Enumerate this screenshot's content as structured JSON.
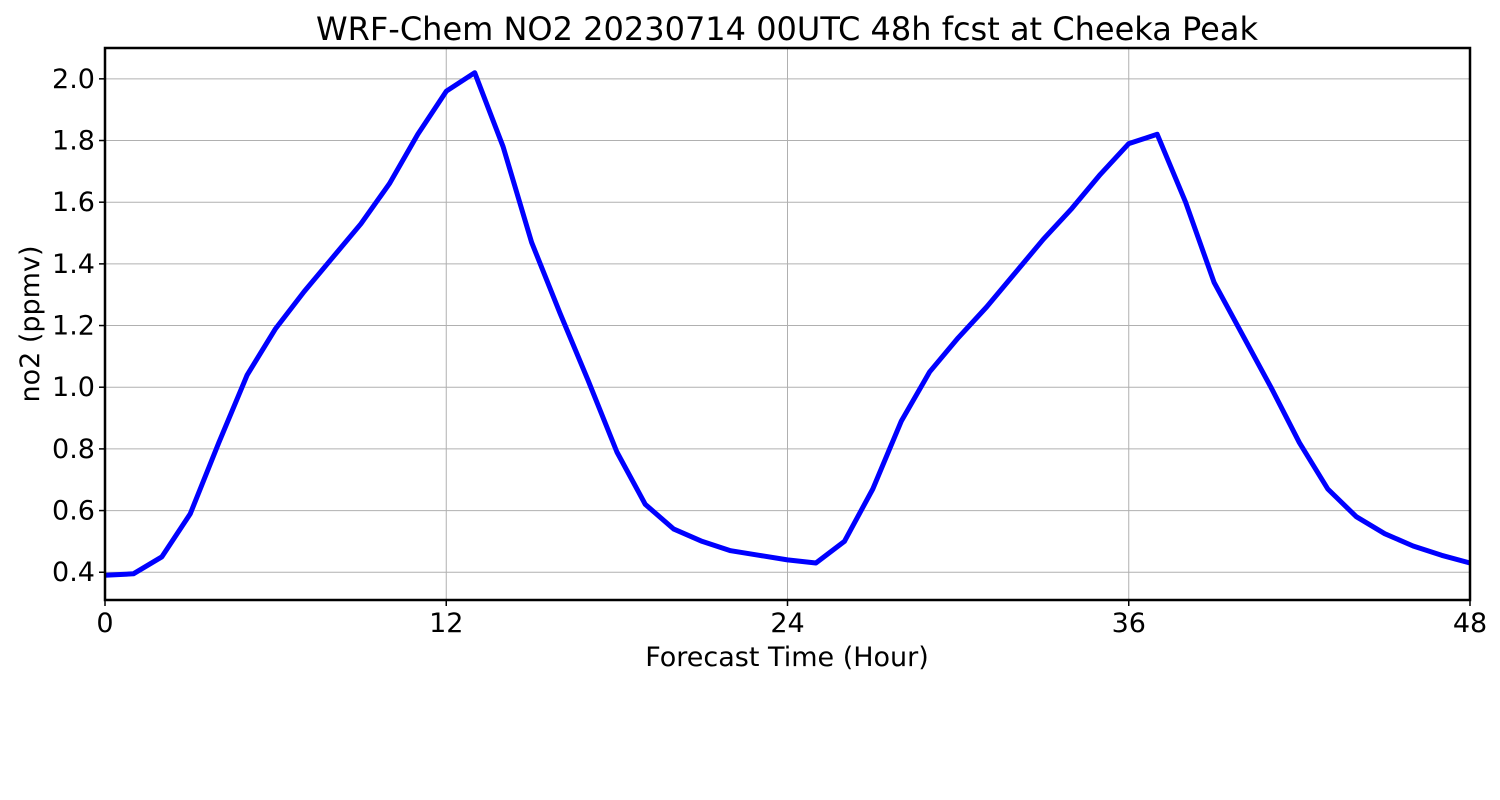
{
  "chart_data": {
    "type": "line",
    "title": "WRF-Chem NO2  20230714 00UTC 48h fcst at Cheeka Peak",
    "xlabel": "Forecast Time (Hour)",
    "ylabel": "no2  (ppmv)",
    "xlim": [
      0,
      48
    ],
    "ylim": [
      0.31,
      2.1
    ],
    "xticks": [
      0,
      12,
      24,
      36,
      48
    ],
    "yticks": [
      0.4,
      0.6,
      0.8,
      1.0,
      1.2,
      1.4,
      1.6,
      1.8,
      2.0
    ],
    "ytick_labels": [
      "0.4",
      "0.6",
      "0.8",
      "1.0",
      "1.2",
      "1.4",
      "1.6",
      "1.8",
      "2.0"
    ],
    "grid": true,
    "series": [
      {
        "color": "#0000ff",
        "x": [
          0,
          1,
          2,
          3,
          4,
          5,
          6,
          7,
          8,
          9,
          10,
          11,
          12,
          13,
          14,
          15,
          16,
          17,
          18,
          19,
          20,
          21,
          22,
          23,
          24,
          25,
          26,
          27,
          28,
          29,
          30,
          31,
          32,
          33,
          34,
          35,
          36,
          37,
          38,
          39,
          40,
          41,
          42,
          43,
          44,
          45,
          46,
          47,
          48
        ],
        "y": [
          0.39,
          0.395,
          0.45,
          0.59,
          0.82,
          1.04,
          1.19,
          1.31,
          1.42,
          1.53,
          1.66,
          1.82,
          1.96,
          2.02,
          1.78,
          1.47,
          1.24,
          1.02,
          0.79,
          0.62,
          0.54,
          0.5,
          0.47,
          0.455,
          0.44,
          0.43,
          0.5,
          0.67,
          0.89,
          1.05,
          1.16,
          1.26,
          1.37,
          1.48,
          1.58,
          1.69,
          1.79,
          1.82,
          1.6,
          1.34,
          1.17,
          1.0,
          0.82,
          0.67,
          0.58,
          0.525,
          0.485,
          0.455,
          0.43
        ]
      }
    ]
  }
}
